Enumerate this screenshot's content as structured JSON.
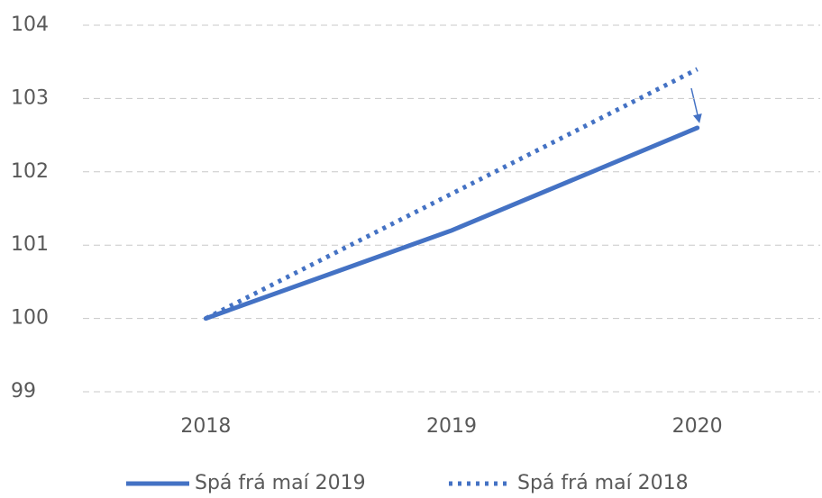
{
  "chart_data": {
    "type": "line",
    "categories": [
      "2018",
      "2019",
      "2020"
    ],
    "series": [
      {
        "name": "Spá frá maí 2019",
        "color": "#4472c4",
        "dash": "solid",
        "values": [
          100,
          101.2,
          102.6
        ]
      },
      {
        "name": "Spá frá maí 2018",
        "color": "#4472c4",
        "dash": "dotted",
        "values": [
          100,
          101.7,
          103.4
        ]
      }
    ],
    "ylim": [
      99,
      104
    ],
    "yticks": [
      99,
      100,
      101,
      102,
      103,
      104
    ],
    "grid": true
  }
}
